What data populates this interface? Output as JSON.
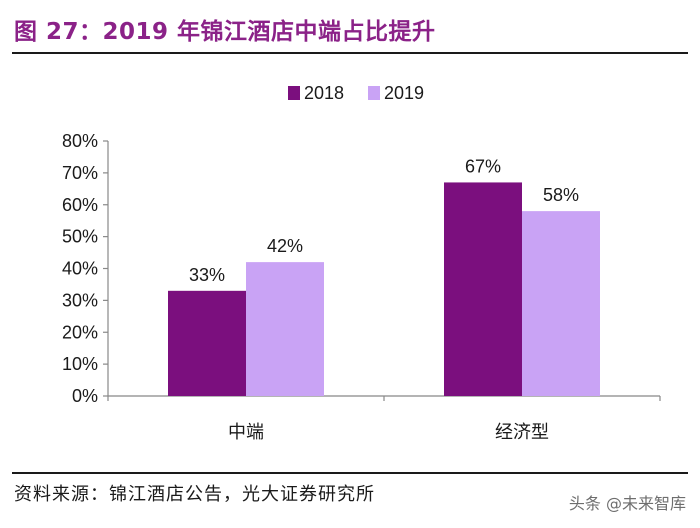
{
  "figure": {
    "title": "图 27：2019 年锦江酒店中端占比提升",
    "source": "资料来源：锦江酒店公告，光大证券研究所",
    "watermark": "头条 @未来智库"
  },
  "colors": {
    "title": "#8b2288",
    "series_2018": "#7b0f7e",
    "series_2019": "#c9a3f5",
    "axis": "#888888",
    "text": "#1a1a1a"
  },
  "chart_data": {
    "type": "bar",
    "categories": [
      "中端",
      "经济型"
    ],
    "series": [
      {
        "name": "2018",
        "values": [
          33,
          67
        ],
        "labels": [
          "33%",
          "67%"
        ]
      },
      {
        "name": "2019",
        "values": [
          42,
          58
        ],
        "labels": [
          "42%",
          "58%"
        ]
      }
    ],
    "ylim": [
      0,
      80
    ],
    "yticks": [
      "0%",
      "10%",
      "20%",
      "30%",
      "40%",
      "50%",
      "60%",
      "70%",
      "80%"
    ],
    "ytick_values": [
      0,
      10,
      20,
      30,
      40,
      50,
      60,
      70,
      80
    ],
    "legend_position": "top-center",
    "grid": false,
    "xlabel": "",
    "ylabel": ""
  }
}
